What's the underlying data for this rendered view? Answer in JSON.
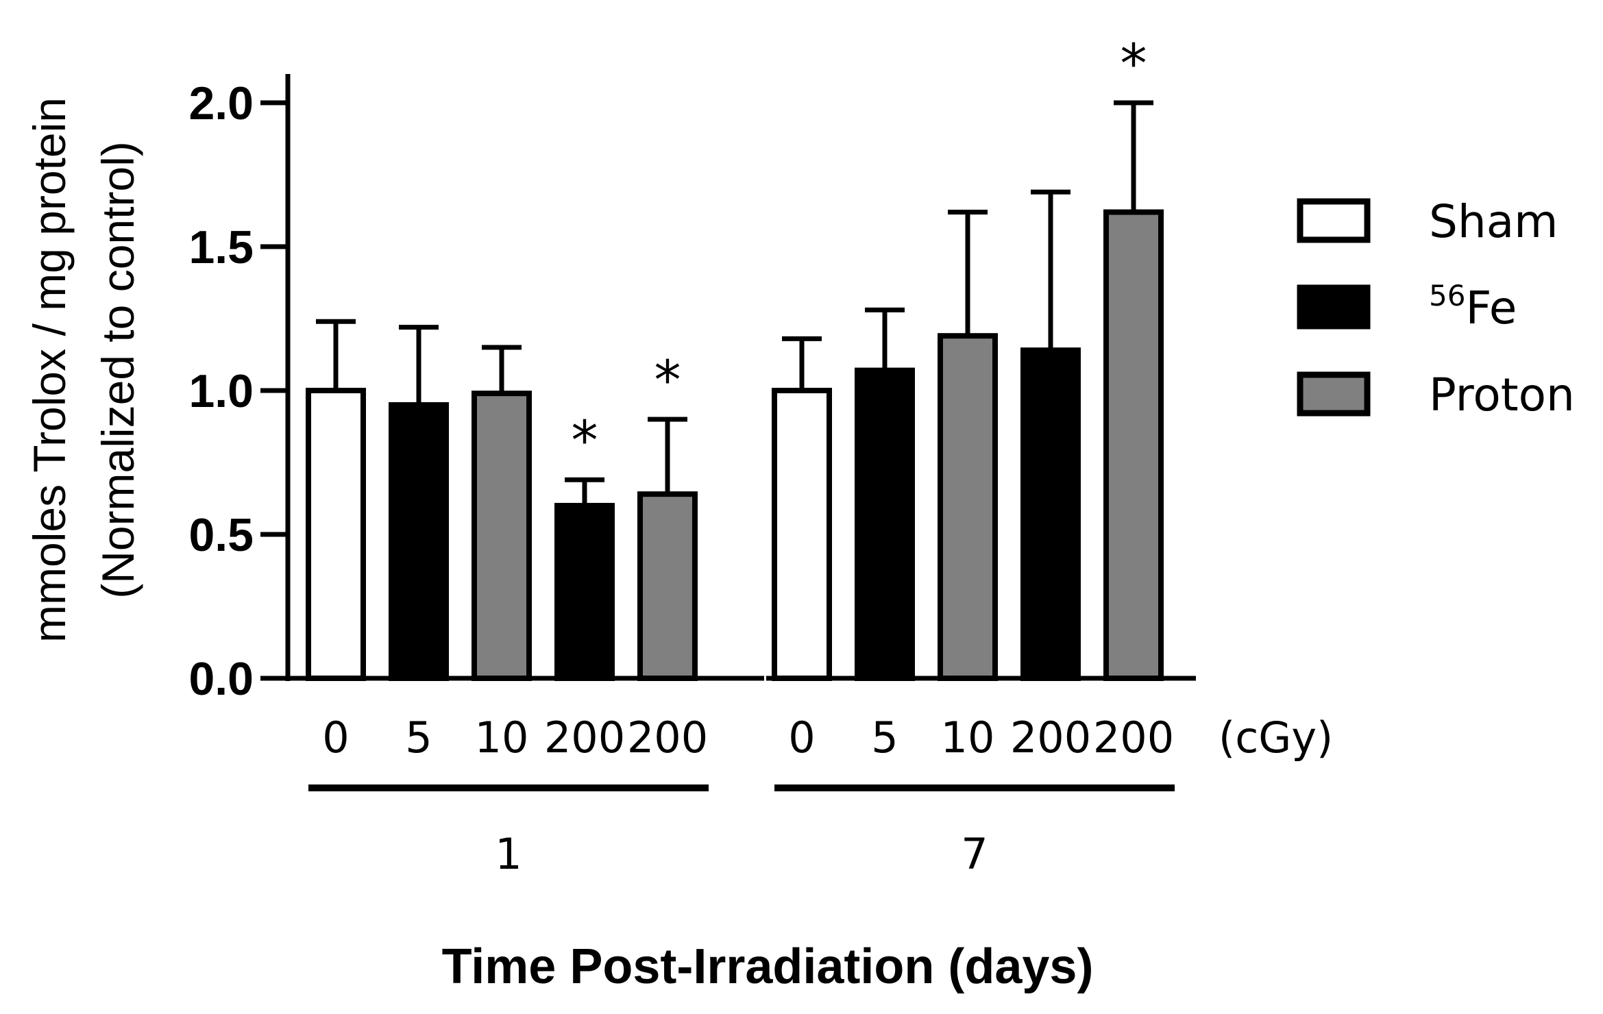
{
  "chart_data": {
    "type": "bar",
    "ylabel_line1": "mmoles Trolox / mg protein",
    "ylabel_line2": "(Normalized to control)",
    "xlabel": "Time Post-Irradiation (days)",
    "ylim": [
      0,
      2.0
    ],
    "yticks": [
      "0.0",
      "0.5",
      "1.0",
      "1.5",
      "2.0"
    ],
    "ytick_values": [
      0,
      0.5,
      1.0,
      1.5,
      2.0
    ],
    "dose_unit": "(cGy)",
    "significance_marker": "*",
    "colors": {
      "Sham": "#ffffff",
      "56Fe": "#000000",
      "Proton": "#808080"
    },
    "groups": [
      {
        "label": "1",
        "bars": [
          {
            "dose": "0",
            "treatment": "Sham",
            "value": 1.0,
            "error": 0.24,
            "significant": false
          },
          {
            "dose": "5",
            "treatment": "56Fe",
            "value": 0.95,
            "error": 0.27,
            "significant": false
          },
          {
            "dose": "10",
            "treatment": "Proton",
            "value": 0.99,
            "error": 0.16,
            "significant": false
          },
          {
            "dose": "200",
            "treatment": "56Fe",
            "value": 0.6,
            "error": 0.09,
            "significant": true
          },
          {
            "dose": "200",
            "treatment": "Proton",
            "value": 0.64,
            "error": 0.26,
            "significant": true
          }
        ]
      },
      {
        "label": "7",
        "bars": [
          {
            "dose": "0",
            "treatment": "Sham",
            "value": 1.0,
            "error": 0.18,
            "significant": false
          },
          {
            "dose": "5",
            "treatment": "56Fe",
            "value": 1.07,
            "error": 0.21,
            "significant": false
          },
          {
            "dose": "10",
            "treatment": "Proton",
            "value": 1.19,
            "error": 0.43,
            "significant": false
          },
          {
            "dose": "200",
            "treatment": "56Fe",
            "value": 1.14,
            "error": 0.55,
            "significant": false
          },
          {
            "dose": "200",
            "treatment": "Proton",
            "value": 1.62,
            "error": 0.38,
            "significant": true
          }
        ]
      }
    ],
    "legend": [
      {
        "key": "Sham",
        "sup": "",
        "text": "Sham"
      },
      {
        "key": "56Fe",
        "sup": "56",
        "text": "Fe"
      },
      {
        "key": "Proton",
        "sup": "",
        "text": "Proton"
      }
    ]
  }
}
